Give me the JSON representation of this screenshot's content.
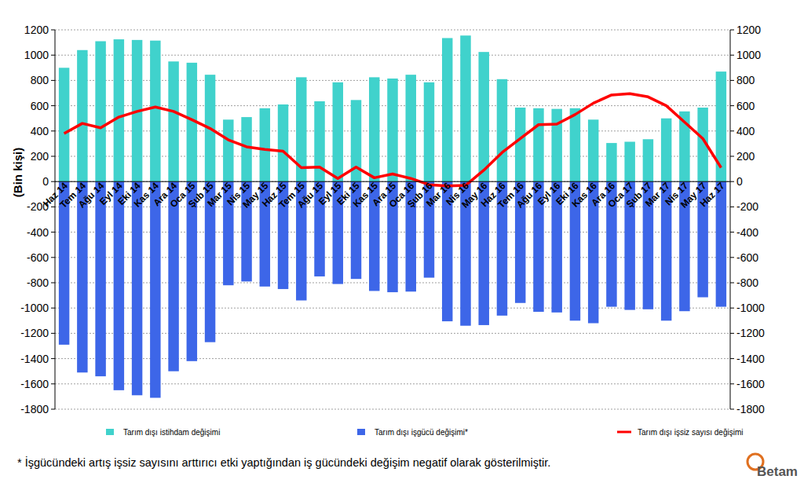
{
  "chart_data": {
    "type": "bar",
    "y_label": "(Bin kişi)",
    "categories": [
      "Haz 14",
      "Tem 14",
      "Ağu 14",
      "Eyl 14",
      "Eki 14",
      "Kas 14",
      "Ara 14",
      "Oca 15",
      "Şub 15",
      "Mar 15",
      "Nis 15",
      "May 15",
      "Haz 15",
      "Tem 15",
      "Ağu 15",
      "Eyl 15",
      "Eki 15",
      "Kas 15",
      "Ara 15",
      "Oca 16",
      "Şub 16",
      "Mar 16",
      "Nis 16",
      "May 16",
      "Haz 16",
      "Tem 16",
      "Ağu 16",
      "Eyl 16",
      "Eki 16",
      "Kas 16",
      "Ara 16",
      "Oca 17",
      "Şub 17",
      "Mar 17",
      "Nis 17",
      "May 17",
      "Haz 17"
    ],
    "series": [
      {
        "name": "Tarım dışı istihdam değişimi",
        "type": "bar",
        "color": "#40d2cc",
        "values": [
          900,
          1040,
          1110,
          1125,
          1120,
          1115,
          950,
          940,
          845,
          490,
          510,
          580,
          610,
          825,
          635,
          785,
          645,
          825,
          815,
          845,
          785,
          1135,
          1155,
          1025,
          810,
          585,
          580,
          575,
          580,
          490,
          305,
          315,
          335,
          500,
          555,
          585,
          870
        ]
      },
      {
        "name": "Tarım dışı işgücü değişimi*",
        "type": "bar",
        "color": "#3d66e8",
        "values": [
          -1290,
          -1510,
          -1540,
          -1650,
          -1690,
          -1710,
          -1500,
          -1420,
          -1270,
          -820,
          -790,
          -830,
          -850,
          -940,
          -750,
          -810,
          -770,
          -865,
          -875,
          -870,
          -760,
          -1105,
          -1140,
          -1135,
          -1060,
          -960,
          -1030,
          -1035,
          -1100,
          -1120,
          -990,
          -1015,
          -1010,
          -1100,
          -1025,
          -915,
          -990
        ]
      },
      {
        "name": "Tarım dışı işsiz sayısı değişimi",
        "type": "line",
        "color": "#ff0000",
        "axis": "y2",
        "values": [
          380,
          460,
          425,
          510,
          555,
          590,
          555,
          490,
          420,
          330,
          275,
          255,
          240,
          110,
          115,
          25,
          115,
          30,
          60,
          25,
          -25,
          -35,
          -30,
          90,
          230,
          340,
          450,
          455,
          530,
          620,
          685,
          695,
          670,
          600,
          470,
          340,
          110
        ]
      }
    ],
    "ylim": [
      -1800,
      1200
    ],
    "yticks": [
      -1800,
      -1600,
      -1400,
      -1200,
      -1000,
      -800,
      -600,
      -400,
      -200,
      0,
      200,
      400,
      600,
      800,
      1000,
      1200
    ],
    "y2lim": [
      -1800,
      1200
    ],
    "y2ticks": [
      -1800,
      -1600,
      -1400,
      -1200,
      -1000,
      -800,
      -600,
      -400,
      -200,
      0,
      200,
      400,
      600,
      800,
      1000,
      1200
    ],
    "grid": true,
    "legend": "bottom",
    "annotations": [
      "* İşgücündeki artış işsiz sayısını arttırıcı etki yaptığından iş gücündeki değişim negatif olarak gösterilmiştir.",
      "Betam"
    ]
  }
}
